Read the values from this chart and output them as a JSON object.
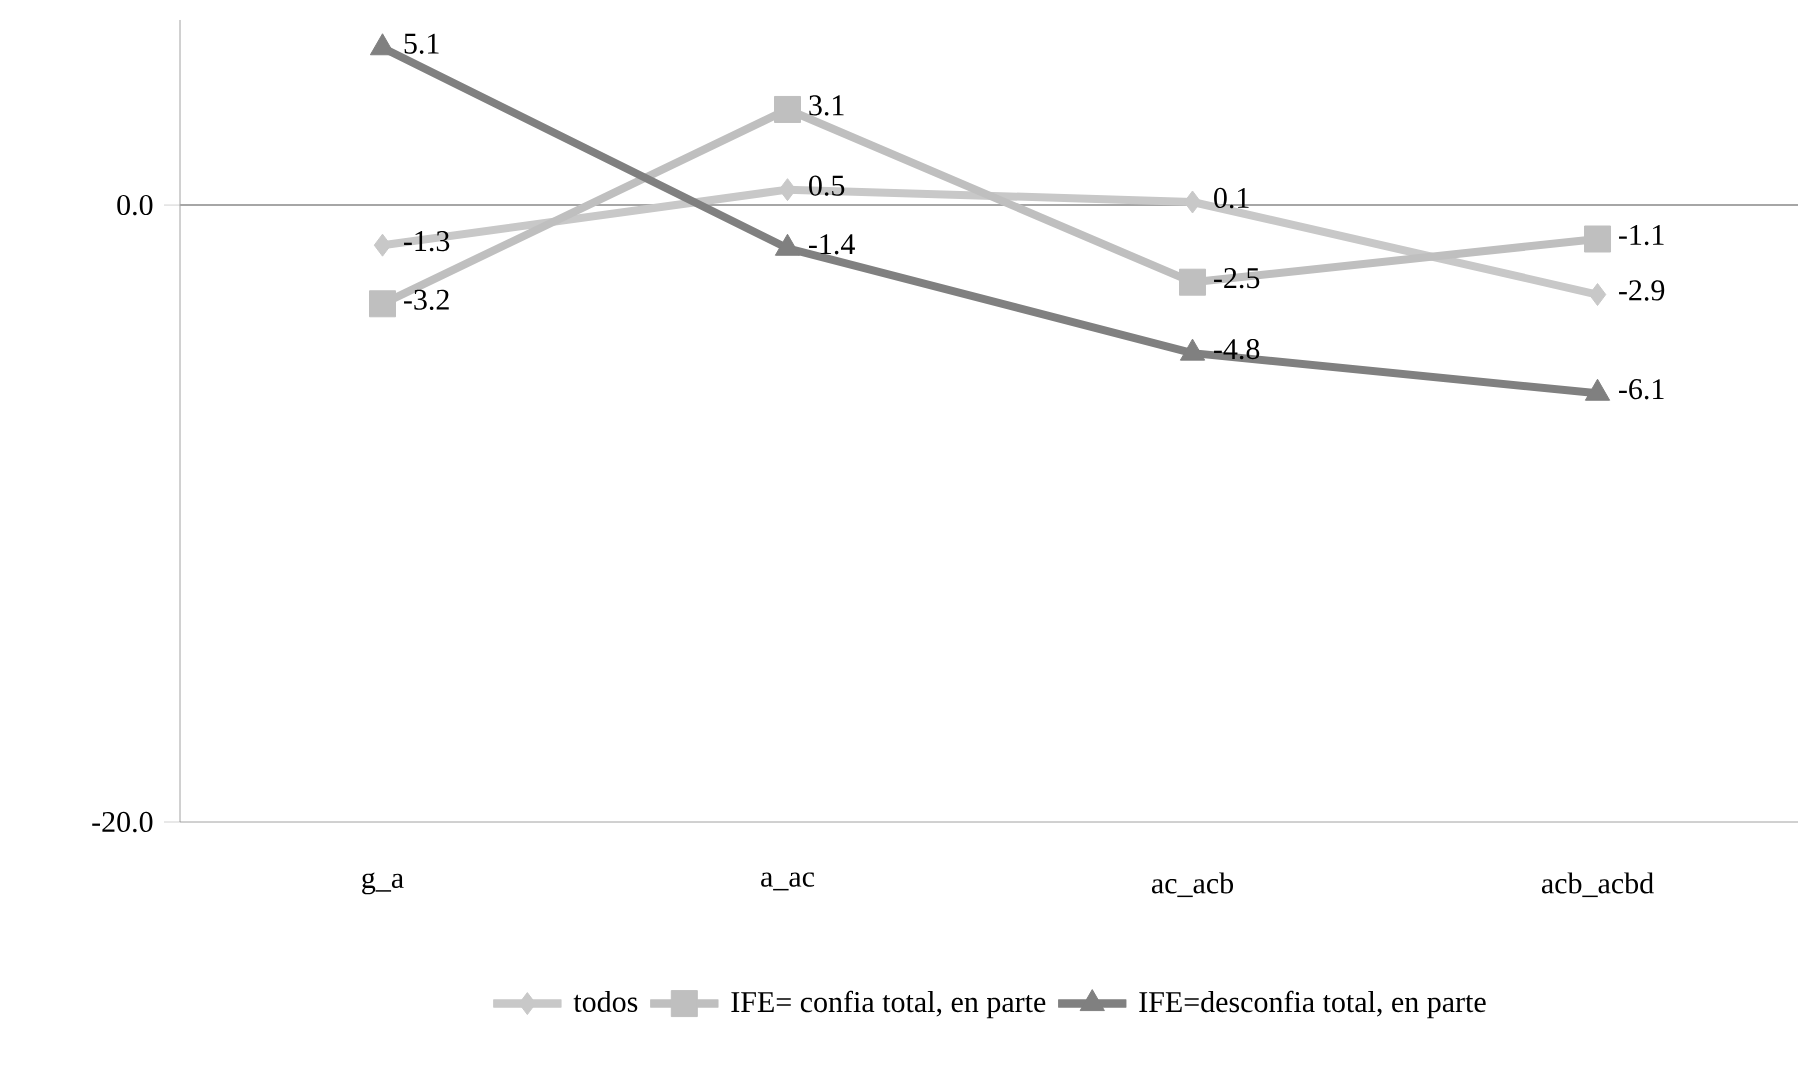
{
  "chart_data": {
    "type": "line",
    "categories": [
      "g_a",
      "a_ac",
      "ac_acb",
      "acb_acbd"
    ],
    "series": [
      {
        "name": "todos",
        "color": "#c8c8c8",
        "marker": "diamond",
        "values": [
          -1.3,
          0.5,
          0.1,
          -2.9
        ]
      },
      {
        "name": "IFE= confia total, en parte",
        "color": "#bfbfbf",
        "marker": "square",
        "values": [
          -3.2,
          3.1,
          -2.5,
          -1.1
        ]
      },
      {
        "name": "IFE=desconfia total, en parte",
        "color": "#808080",
        "marker": "triangle",
        "values": [
          5.1,
          -1.4,
          -4.8,
          -6.1
        ]
      }
    ],
    "ylim": [
      -20,
      6
    ],
    "yticks": [
      {
        "value": -20,
        "label": "-20.0"
      },
      {
        "value": 0,
        "label": "0.0"
      }
    ],
    "ref_lines": [
      {
        "axis": "y",
        "value": 0,
        "color": "#a6a6a6"
      }
    ],
    "data_labels": true,
    "legend": "bottom",
    "grid": false
  }
}
